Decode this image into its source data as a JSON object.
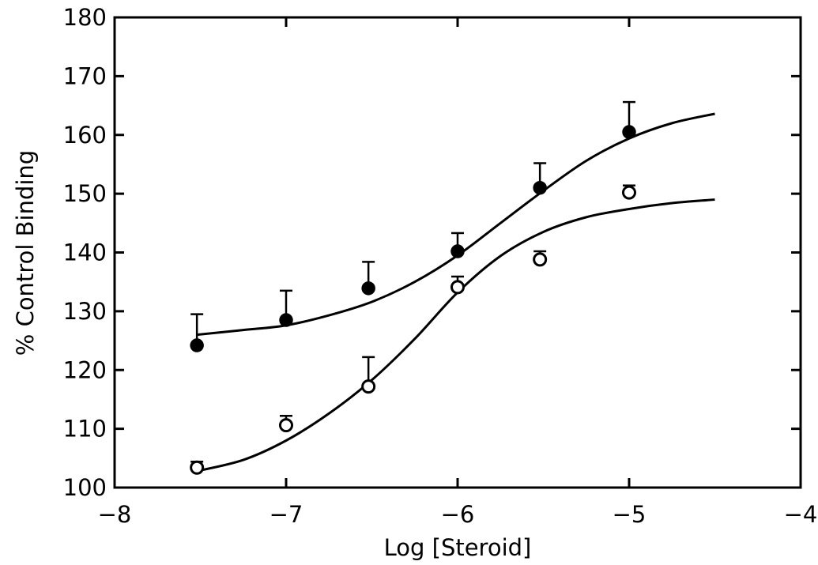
{
  "chart_data": {
    "type": "scatter",
    "title": "",
    "xlabel": "Log [Steroid]",
    "ylabel": "% Control Binding",
    "xlim": [
      -8,
      -4
    ],
    "ylim": [
      100,
      180
    ],
    "xticks": [
      -8,
      -7,
      -6,
      -5,
      -4
    ],
    "xtick_labels": [
      "−8",
      "−7",
      "−6",
      "−5",
      "−4"
    ],
    "yticks": [
      100,
      110,
      120,
      130,
      140,
      150,
      160,
      170,
      180
    ],
    "ytick_labels": [
      "100",
      "110",
      "120",
      "130",
      "140",
      "150",
      "160",
      "170",
      "180"
    ],
    "grid": false,
    "series": [
      {
        "marker": "filled-circle",
        "x": [
          -7.52,
          -7.0,
          -6.52,
          -6.0,
          -5.52,
          -5.0
        ],
        "y": [
          124.2,
          128.5,
          133.9,
          140.2,
          151.0,
          160.5
        ],
        "error_upper": [
          5.3,
          5.0,
          4.5,
          3.1,
          4.2,
          5.1
        ],
        "fit_curve": {
          "x": [
            -7.52,
            -7.25,
            -7.0,
            -6.75,
            -6.5,
            -6.25,
            -6.0,
            -5.75,
            -5.5,
            -5.25,
            -5.0,
            -4.75,
            -4.5
          ],
          "y": [
            126.0,
            126.8,
            127.6,
            129.3,
            131.6,
            135.0,
            139.5,
            145.0,
            150.5,
            155.6,
            159.4,
            162.0,
            163.6
          ]
        }
      },
      {
        "marker": "open-circle",
        "x": [
          -7.52,
          -7.0,
          -6.52,
          -6.0,
          -5.52,
          -5.0
        ],
        "y": [
          103.4,
          110.6,
          117.2,
          134.1,
          138.8,
          150.2
        ],
        "error_upper": [
          1.0,
          1.6,
          5.0,
          1.8,
          1.4,
          1.2
        ],
        "fit_curve": {
          "x": [
            -7.52,
            -7.25,
            -7.0,
            -6.75,
            -6.5,
            -6.25,
            -6.0,
            -5.75,
            -5.5,
            -5.25,
            -5.0,
            -4.75,
            -4.5
          ],
          "y": [
            102.8,
            104.7,
            108.0,
            112.6,
            118.3,
            125.3,
            133.2,
            139.4,
            143.5,
            146.0,
            147.4,
            148.4,
            149.0
          ]
        }
      }
    ]
  }
}
